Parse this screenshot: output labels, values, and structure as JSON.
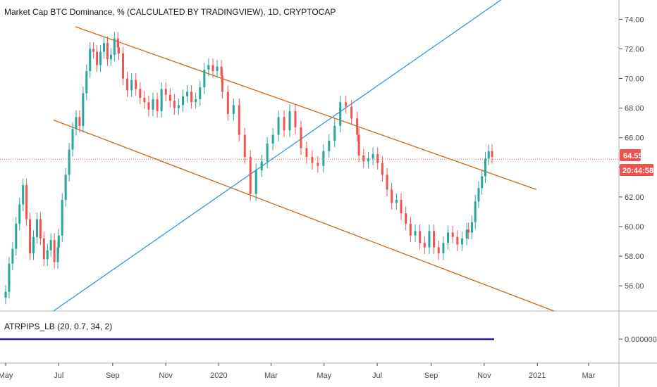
{
  "chart_data": {
    "type": "candlestick",
    "title": "Market Cap BTC Dominance, % (CALCULATED BY TRADINGVIEW), 1D, CRYPTOCAP",
    "x_tick_labels": [
      "May",
      "Jul",
      "Sep",
      "Nov",
      "2020",
      "Mar",
      "May",
      "Jul",
      "Sep",
      "Nov",
      "2021",
      "Mar"
    ],
    "y_tick_labels": [
      "56.00",
      "58.00",
      "60.00",
      "62.00",
      "64.00",
      "66.00",
      "68.00",
      "70.00",
      "72.00",
      "74.00"
    ],
    "y_ticks": [
      56,
      58,
      60,
      62,
      64,
      66,
      68,
      70,
      72,
      74
    ],
    "ylim": [
      54.3,
      75.3
    ],
    "last_price": "64.55",
    "last_price_value": 64.55,
    "countdown": "20:44:58",
    "series": [
      {
        "segment": "2019-05 to 2019-06",
        "values": [
          55.6,
          57.5,
          58.5,
          60.2,
          61.5,
          62.8,
          60.5,
          58.2,
          59.3,
          60.5,
          59.2,
          57.8,
          58.4,
          59.1,
          57.6,
          58.6
        ]
      },
      {
        "segment": "2019-07 to 2019-09",
        "values": [
          59.4,
          61.8,
          63.5,
          65.2,
          66.6,
          67.4,
          66.8,
          69.0,
          70.5,
          72.0,
          71.8,
          70.9,
          71.8,
          72.4,
          71.3,
          71.6,
          72.7,
          72.1
        ]
      },
      {
        "segment": "2019-09 to 2019-12",
        "values": [
          71.7,
          70.0,
          69.2,
          69.9,
          69.3,
          68.7,
          68.4,
          67.9,
          68.6,
          67.8,
          69.3,
          68.9,
          68.5,
          68.0,
          68.2,
          68.8,
          69.1,
          68.4,
          68.6,
          69.4,
          70.6,
          70.9,
          70.5,
          70.8,
          70.2
        ]
      },
      {
        "segment": "2020-01 to 2020-02",
        "values": [
          69.1,
          67.6,
          68.2,
          66.2,
          64.7,
          62.2,
          63.8,
          64.4,
          65.6,
          66.2,
          67.4,
          66.5,
          67.8,
          66.7,
          65.3,
          64.7,
          64.3,
          64.1,
          65.1,
          65.8,
          66.8,
          68.4,
          68.1,
          67.3,
          66.2
        ]
      },
      {
        "segment": "2020-05 to 2020-06",
        "values": [
          64.8,
          64.4,
          64.6,
          64.9,
          64.3,
          63.5,
          62.5,
          61.6,
          61.8,
          60.9,
          60.2,
          59.4,
          59.7,
          58.9,
          58.6,
          59.7,
          58.6,
          58.2,
          58.9,
          59.6,
          59.3,
          58.8,
          59.2,
          59.8
        ]
      },
      {
        "segment": "2020-10 to 2020-11",
        "values": [
          59.6,
          60.3,
          61.7,
          62.6,
          63.4,
          64.6,
          65.1,
          64.7
        ]
      }
    ],
    "trendlines": [
      {
        "name": "upper channel",
        "color": "#c46a1b",
        "x": [
          "2019-07-20",
          "2020-12-31"
        ],
        "y": [
          73.5,
          62.5
        ]
      },
      {
        "name": "lower channel",
        "color": "#c46a1b",
        "x": [
          "2019-06-25",
          "2021-01-20"
        ],
        "y": [
          67.2,
          54.3
        ]
      },
      {
        "name": "rising trendline",
        "color": "#2f9ad6",
        "x": [
          "2019-06-25",
          "2020-11-25"
        ],
        "y": [
          54.3,
          75.5
        ]
      }
    ],
    "indicator": {
      "label": "ATRPIPS_LB (20, 0.7, 34, 2)",
      "value_label": "0.000000",
      "value": 0.0,
      "line_color": "#2a1aa8"
    },
    "colors": {
      "up": "#26a69a",
      "down": "#ef5350",
      "price_line": "#ef5350",
      "trend_orange": "#c46a1b",
      "trend_blue": "#2f9ad6"
    }
  }
}
